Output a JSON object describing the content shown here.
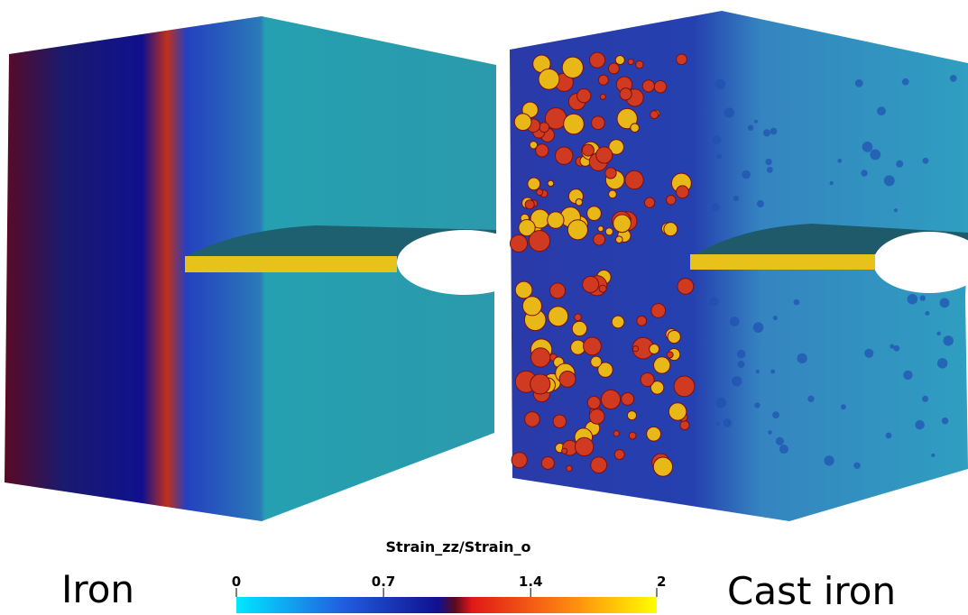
{
  "labels": {
    "left": "Iron",
    "right": "Cast iron"
  },
  "colorbar": {
    "title": "Strain_zz/Strain_o",
    "range": [
      0,
      2
    ],
    "ticks": [
      0,
      0.7,
      1.4,
      2
    ]
  }
}
